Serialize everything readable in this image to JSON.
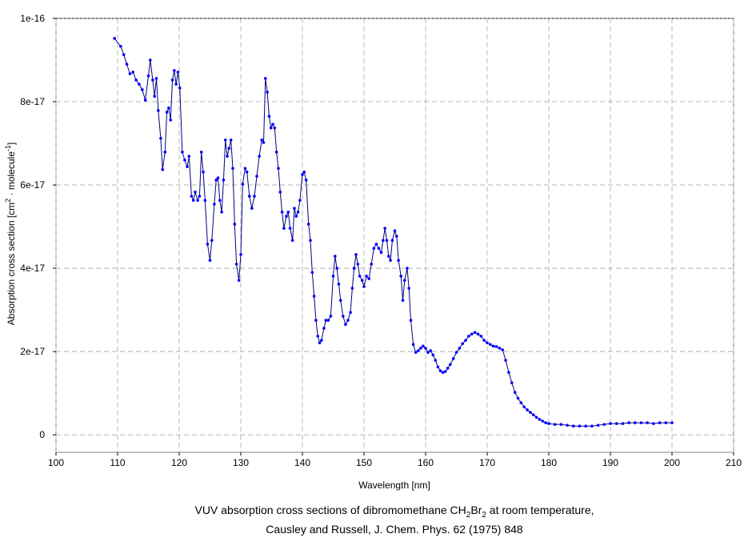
{
  "chart_data": {
    "type": "line",
    "xlabel": "Wavelength [nm]",
    "ylabel": [
      "Absorption cross section [cm",
      "2",
      " · molecule",
      "-1",
      "]"
    ],
    "caption": [
      "VUV absorption cross sections of dibromomethane CH",
      "2",
      "Br",
      "2",
      " at room temperature,"
    ],
    "caption2": "Causley and Russell, J. Chem. Phys. 62 (1975) 848",
    "xlim": [
      100,
      210
    ],
    "xticks": [
      100,
      110,
      120,
      130,
      140,
      150,
      160,
      170,
      180,
      190,
      200,
      210
    ],
    "ylim": [
      -4.2e-18,
      1e-16
    ],
    "yticks": [
      0,
      2e-17,
      4e-17,
      6e-17,
      8e-17,
      1e-16
    ],
    "grid": true,
    "series": [
      {
        "color": "#000080",
        "marker_color": "#0000ff",
        "x": [
          109.5,
          110.5,
          111,
          111.5,
          112,
          112.5,
          113,
          113.5,
          114,
          114.5,
          115,
          115.3,
          115.7,
          116,
          116.3,
          116.6,
          117,
          117.3,
          117.7,
          118,
          118.3,
          118.6,
          118.9,
          119.2,
          119.5,
          119.8,
          120.1,
          120.5,
          120.9,
          121.3,
          121.6,
          122,
          122.3,
          122.6,
          123,
          123.3,
          123.6,
          123.9,
          124.2,
          124.6,
          125,
          125.3,
          125.7,
          126,
          126.3,
          126.6,
          126.9,
          127.2,
          127.5,
          127.8,
          128.1,
          128.4,
          128.7,
          129,
          129.3,
          129.7,
          130,
          130.3,
          130.7,
          131,
          131.4,
          131.8,
          132.2,
          132.6,
          133,
          133.4,
          133.7,
          134,
          134.3,
          134.6,
          134.9,
          135.2,
          135.5,
          135.8,
          136.1,
          136.4,
          136.7,
          137,
          137.4,
          137.7,
          138,
          138.4,
          138.7,
          139,
          139.3,
          139.6,
          140,
          140.3,
          140.6,
          141,
          141.3,
          141.6,
          141.9,
          142.2,
          142.5,
          142.8,
          143.1,
          143.5,
          143.8,
          144.2,
          144.6,
          145,
          145.3,
          145.6,
          145.9,
          146.2,
          146.6,
          147,
          147.4,
          147.8,
          148.1,
          148.4,
          148.7,
          149,
          149.3,
          149.7,
          150,
          150.4,
          150.8,
          151.2,
          151.6,
          152,
          152.4,
          152.8,
          153.1,
          153.4,
          153.7,
          154,
          154.3,
          154.6,
          155,
          155.3,
          155.6,
          156,
          156.3,
          156.6,
          157,
          157.3,
          157.6,
          158,
          158.4,
          158.8,
          159.2,
          159.6,
          160,
          160.4,
          160.8,
          161.2,
          161.6,
          162,
          162.4,
          162.8,
          163.2,
          163.6,
          164,
          164.5,
          165,
          165.5,
          166,
          166.5,
          167,
          167.5,
          168,
          168.5,
          169,
          169.5,
          170,
          170.5,
          171,
          171.5,
          172,
          172.5,
          173,
          173.5,
          174,
          174.5,
          175,
          175.5,
          176,
          176.5,
          177,
          177.5,
          178,
          178.5,
          179,
          179.5,
          180,
          181,
          182,
          183,
          184,
          185,
          186,
          187,
          188,
          189,
          190,
          191,
          192,
          193,
          194,
          195,
          196,
          197,
          198,
          199,
          200
        ],
        "values": [
          9.52e-17,
          9.33e-17,
          9.13e-17,
          8.9e-17,
          8.67e-17,
          8.71e-17,
          8.52e-17,
          8.42e-17,
          8.29e-17,
          8.04e-17,
          8.62e-17,
          9e-17,
          8.52e-17,
          8.13e-17,
          8.56e-17,
          7.79e-17,
          7.12e-17,
          6.37e-17,
          6.79e-17,
          7.75e-17,
          7.85e-17,
          7.56e-17,
          8.52e-17,
          8.75e-17,
          8.42e-17,
          8.71e-17,
          8.33e-17,
          6.79e-17,
          6.6e-17,
          6.44e-17,
          6.69e-17,
          5.73e-17,
          5.63e-17,
          5.83e-17,
          5.63e-17,
          5.73e-17,
          6.79e-17,
          6.31e-17,
          5.63e-17,
          4.58e-17,
          4.19e-17,
          4.67e-17,
          5.54e-17,
          6.12e-17,
          6.17e-17,
          5.63e-17,
          5.35e-17,
          6.12e-17,
          7.08e-17,
          6.69e-17,
          6.88e-17,
          7.08e-17,
          6.4e-17,
          5.06e-17,
          4.1e-17,
          3.71e-17,
          4.33e-17,
          6.02e-17,
          6.4e-17,
          6.31e-17,
          5.73e-17,
          5.44e-17,
          5.73e-17,
          6.21e-17,
          6.69e-17,
          7.08e-17,
          7.02e-17,
          8.56e-17,
          8.23e-17,
          7.65e-17,
          7.37e-17,
          7.46e-17,
          7.37e-17,
          6.79e-17,
          6.4e-17,
          5.83e-17,
          5.35e-17,
          4.96e-17,
          5.25e-17,
          5.35e-17,
          4.96e-17,
          4.67e-17,
          5.44e-17,
          5.25e-17,
          5.35e-17,
          5.63e-17,
          6.25e-17,
          6.31e-17,
          6.12e-17,
          5.06e-17,
          4.67e-17,
          3.9e-17,
          3.33e-17,
          2.75e-17,
          2.37e-17,
          2.21e-17,
          2.27e-17,
          2.56e-17,
          2.75e-17,
          2.75e-17,
          2.85e-17,
          3.81e-17,
          4.29e-17,
          4e-17,
          3.62e-17,
          3.23e-17,
          2.85e-17,
          2.65e-17,
          2.75e-17,
          2.94e-17,
          3.52e-17,
          4e-17,
          4.33e-17,
          4.1e-17,
          3.81e-17,
          3.71e-17,
          3.56e-17,
          3.81e-17,
          3.75e-17,
          4.1e-17,
          4.48e-17,
          4.58e-17,
          4.48e-17,
          4.38e-17,
          4.67e-17,
          4.96e-17,
          4.67e-17,
          4.29e-17,
          4.19e-17,
          4.67e-17,
          4.9e-17,
          4.77e-17,
          4.19e-17,
          3.81e-17,
          3.23e-17,
          3.71e-17,
          4e-17,
          3.52e-17,
          2.75e-17,
          2.17e-17,
          1.98e-17,
          2.02e-17,
          2.08e-17,
          2.13e-17,
          2.08e-17,
          1.98e-17,
          2.02e-17,
          1.92e-17,
          1.79e-17,
          1.63e-17,
          1.54e-17,
          1.5e-17,
          1.52e-17,
          1.6e-17,
          1.69e-17,
          1.83e-17,
          1.98e-17,
          2.08e-17,
          2.19e-17,
          2.27e-17,
          2.37e-17,
          2.42e-17,
          2.46e-17,
          2.42e-17,
          2.37e-17,
          2.27e-17,
          2.21e-17,
          2.17e-17,
          2.13e-17,
          2.12e-17,
          2.08e-17,
          2.04e-17,
          1.79e-17,
          1.5e-17,
          1.25e-17,
          1.02e-17,
          8.8e-18,
          7.7e-18,
          6.7e-18,
          6e-18,
          5.4e-18,
          4.8e-18,
          4.2e-18,
          3.7e-18,
          3.3e-18,
          2.9e-18,
          2.7e-18,
          2.5e-18,
          2.5e-18,
          2.3e-18,
          2.1e-18,
          2.1e-18,
          2.1e-18,
          2.1e-18,
          2.3e-18,
          2.5e-18,
          2.7e-18,
          2.7e-18,
          2.7e-18,
          2.9e-18,
          2.9e-18,
          2.9e-18,
          2.9e-18,
          2.7e-18,
          2.9e-18,
          2.9e-18,
          2.9e-18
        ]
      }
    ]
  }
}
